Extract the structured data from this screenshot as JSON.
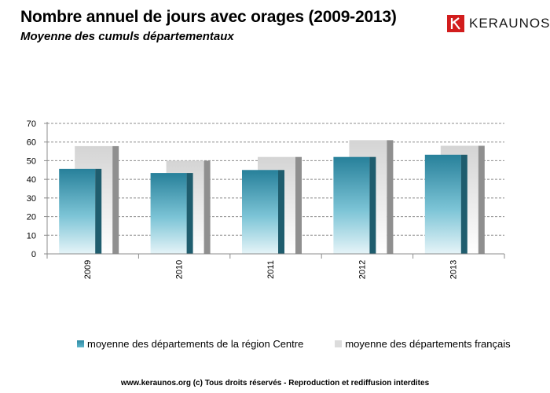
{
  "header": {
    "title": "Nombre annuel de jours avec orages (2009-2013)",
    "subtitle": "Moyenne des cumuls départementaux"
  },
  "brand": {
    "name": "KERAUNOS",
    "color": "#d21d1d"
  },
  "footer": {
    "text": "www.keraunos.org  (c) Tous droits réservés - Reproduction et rediffusion interdites"
  },
  "chart_data": {
    "type": "bar",
    "title": "Nombre annuel de jours avec orages (2009-2013)",
    "subtitle": "Moyenne des cumuls départementaux",
    "categories": [
      "2009",
      "2010",
      "2011",
      "2012",
      "2013"
    ],
    "series": [
      {
        "name": "moyenne des départements de la région Centre",
        "values": [
          45.6,
          43.4,
          45.0,
          52.0,
          53.2
        ],
        "color": "#2e8aa3"
      },
      {
        "name": "moyenne des départements français",
        "values": [
          57.8,
          50.0,
          52.0,
          61.0,
          58.0
        ],
        "color": "#dcdcdc"
      }
    ],
    "ylim": [
      0,
      70
    ],
    "yticks": [
      0,
      10,
      20,
      30,
      40,
      50,
      60,
      70
    ],
    "xlabel": "",
    "ylabel": "",
    "grid": true,
    "legend_position": "bottom"
  }
}
